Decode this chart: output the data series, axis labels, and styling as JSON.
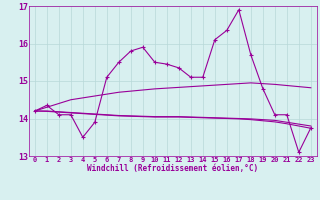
{
  "x": [
    0,
    1,
    2,
    3,
    4,
    5,
    6,
    7,
    8,
    9,
    10,
    11,
    12,
    13,
    14,
    15,
    16,
    17,
    18,
    19,
    20,
    21,
    22,
    23
  ],
  "main_line": [
    14.2,
    14.35,
    14.1,
    14.1,
    13.5,
    13.9,
    15.1,
    15.5,
    15.8,
    15.9,
    15.5,
    15.45,
    15.35,
    15.1,
    15.1,
    16.1,
    16.35,
    16.9,
    15.7,
    14.8,
    14.1,
    14.1,
    13.1,
    13.75
  ],
  "trend_up": [
    14.2,
    14.3,
    14.4,
    14.5,
    14.55,
    14.6,
    14.65,
    14.7,
    14.73,
    14.76,
    14.79,
    14.81,
    14.83,
    14.85,
    14.87,
    14.89,
    14.91,
    14.93,
    14.95,
    14.93,
    14.91,
    14.88,
    14.85,
    14.82
  ],
  "trend_flat1": [
    14.2,
    14.2,
    14.18,
    14.16,
    14.14,
    14.12,
    14.1,
    14.08,
    14.07,
    14.06,
    14.05,
    14.05,
    14.05,
    14.04,
    14.03,
    14.02,
    14.01,
    14.0,
    13.99,
    13.97,
    13.95,
    13.9,
    13.85,
    13.8
  ],
  "trend_flat2": [
    14.2,
    14.19,
    14.17,
    14.15,
    14.13,
    14.11,
    14.09,
    14.07,
    14.06,
    14.05,
    14.04,
    14.04,
    14.04,
    14.03,
    14.02,
    14.01,
    14.0,
    13.99,
    13.97,
    13.94,
    13.91,
    13.86,
    13.8,
    13.74
  ],
  "line_color": "#990099",
  "bg_color": "#d8f0f0",
  "grid_color": "#b8d8d8",
  "ylim": [
    13.0,
    17.0
  ],
  "xlabel": "Windchill (Refroidissement éolien,°C)",
  "yticks": [
    13,
    14,
    15,
    16,
    17
  ],
  "xticks": [
    0,
    1,
    2,
    3,
    4,
    5,
    6,
    7,
    8,
    9,
    10,
    11,
    12,
    13,
    14,
    15,
    16,
    17,
    18,
    19,
    20,
    21,
    22,
    23
  ]
}
